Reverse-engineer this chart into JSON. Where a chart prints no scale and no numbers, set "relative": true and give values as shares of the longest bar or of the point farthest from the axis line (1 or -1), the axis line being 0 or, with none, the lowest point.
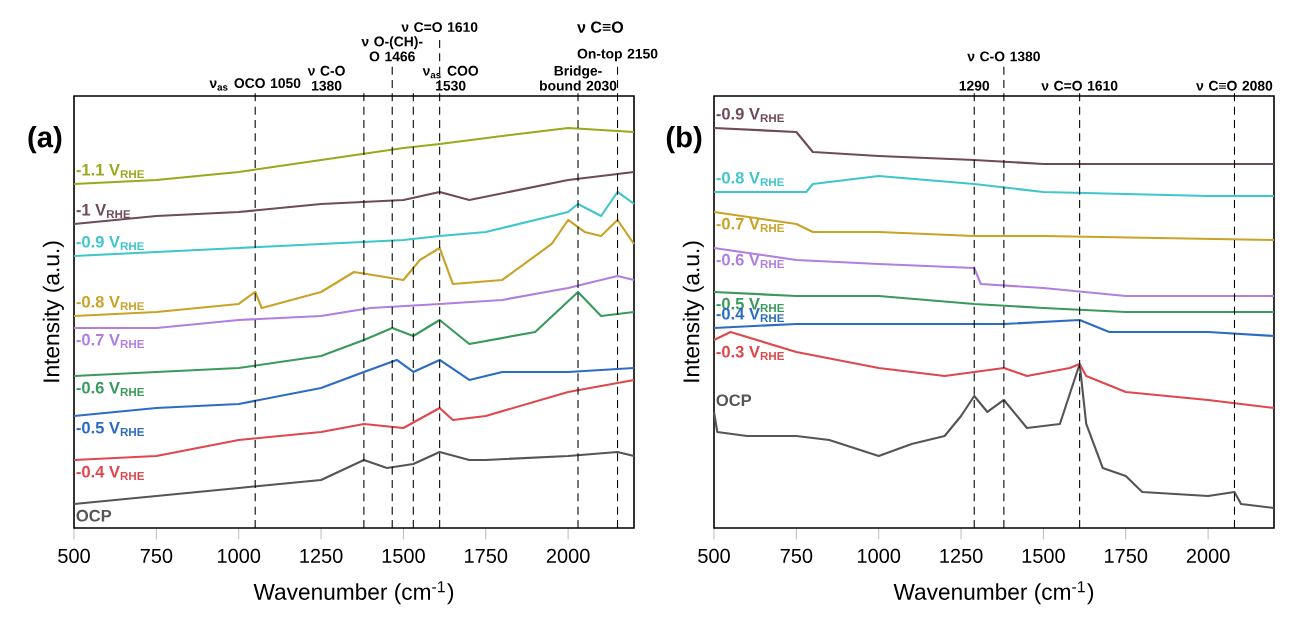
{
  "chart_data": [
    {
      "type": "line",
      "title": "(a)",
      "xlabel": "Wavenumber (cm$^{-1}$)",
      "ylabel": "Intensity (a.u.)",
      "relative": true,
      "xlim": [
        500,
        2200
      ],
      "xticks": [
        500,
        750,
        1000,
        1250,
        1500,
        1750,
        2000
      ],
      "line_style": "solid",
      "annotations": [
        "ν C≡O"
      ],
      "ref_lines": [
        {
          "axis": "x",
          "value": 1050,
          "label": "ν$_{as}$ OCO 1050",
          "line_style": "dashed"
        },
        {
          "axis": "x",
          "value": 1380,
          "label": "ν C-O 1380",
          "line_style": "dashed"
        },
        {
          "axis": "x",
          "value": 1466,
          "label": "ν O-(CH)-O 1466",
          "line_style": "dashed"
        },
        {
          "axis": "x",
          "value": 1530,
          "label": "ν$_{as}$ COO 1530",
          "line_style": "dashed"
        },
        {
          "axis": "x",
          "value": 1610,
          "label": "ν C=O 1610",
          "line_style": "dashed"
        },
        {
          "axis": "x",
          "value": 2030,
          "label": "Bridge-bound 2030",
          "line_style": "dashed"
        },
        {
          "axis": "x",
          "value": 2150,
          "label": "On-top 2150",
          "line_style": "dashed"
        }
      ],
      "series": [
        {
          "name": "OCP",
          "color": "#555555",
          "x": [
            500,
            750,
            1000,
            1250,
            1380,
            1450,
            1530,
            1610,
            1700,
            1750,
            2000,
            2150,
            2200
          ],
          "values": [
            0.06,
            0.08,
            0.1,
            0.12,
            0.17,
            0.15,
            0.16,
            0.19,
            0.17,
            0.17,
            0.18,
            0.19,
            0.18
          ]
        },
        {
          "name": "-0.4 V$_{RHE}$",
          "color": "#e0474c",
          "x": [
            500,
            750,
            1000,
            1250,
            1380,
            1500,
            1610,
            1650,
            1750,
            2000,
            2200
          ],
          "values": [
            0.17,
            0.18,
            0.22,
            0.24,
            0.26,
            0.25,
            0.3,
            0.27,
            0.28,
            0.34,
            0.37
          ]
        },
        {
          "name": "-0.5 V$_{RHE}$",
          "color": "#2c6cc4",
          "x": [
            500,
            750,
            1000,
            1250,
            1380,
            1480,
            1530,
            1610,
            1700,
            1800,
            2000,
            2200
          ],
          "values": [
            0.28,
            0.3,
            0.31,
            0.35,
            0.39,
            0.42,
            0.39,
            0.42,
            0.37,
            0.39,
            0.39,
            0.4
          ]
        },
        {
          "name": "-0.6 V$_{RHE}$",
          "color": "#3a9a5c",
          "x": [
            500,
            750,
            1000,
            1250,
            1380,
            1466,
            1530,
            1610,
            1700,
            1900,
            2030,
            2100,
            2200
          ],
          "values": [
            0.38,
            0.39,
            0.4,
            0.43,
            0.47,
            0.5,
            0.48,
            0.52,
            0.46,
            0.49,
            0.59,
            0.53,
            0.54
          ]
        },
        {
          "name": "-0.7 V$_{RHE}$",
          "color": "#b07fe0",
          "x": [
            500,
            750,
            1000,
            1250,
            1400,
            1610,
            1800,
            2000,
            2150,
            2200
          ],
          "values": [
            0.5,
            0.5,
            0.52,
            0.53,
            0.55,
            0.56,
            0.57,
            0.6,
            0.63,
            0.62
          ]
        },
        {
          "name": "-0.8 V$_{RHE}$",
          "color": "#c9a227",
          "x": [
            500,
            750,
            1000,
            1050,
            1070,
            1250,
            1350,
            1500,
            1550,
            1610,
            1650,
            1800,
            1950,
            2000,
            2050,
            2100,
            2150,
            2200
          ],
          "values": [
            0.53,
            0.54,
            0.56,
            0.59,
            0.55,
            0.59,
            0.64,
            0.62,
            0.67,
            0.7,
            0.61,
            0.62,
            0.71,
            0.77,
            0.74,
            0.73,
            0.77,
            0.71
          ]
        },
        {
          "name": "-0.9 V$_{RHE}$",
          "color": "#3fc6cc",
          "x": [
            500,
            750,
            1000,
            1250,
            1500,
            1610,
            1750,
            2000,
            2030,
            2100,
            2150,
            2200
          ],
          "values": [
            0.68,
            0.69,
            0.7,
            0.71,
            0.72,
            0.73,
            0.74,
            0.79,
            0.81,
            0.78,
            0.84,
            0.81
          ]
        },
        {
          "name": "-1 V$_{RHE}$",
          "color": "#6e4a5a",
          "x": [
            500,
            750,
            1000,
            1250,
            1500,
            1610,
            1700,
            2000,
            2200
          ],
          "values": [
            0.76,
            0.78,
            0.79,
            0.81,
            0.82,
            0.84,
            0.82,
            0.87,
            0.89
          ]
        },
        {
          "name": "-1.1 V$_{RHE}$",
          "color": "#9aa81c",
          "x": [
            500,
            750,
            1000,
            1250,
            1500,
            1610,
            1800,
            2000,
            2200
          ],
          "values": [
            0.86,
            0.87,
            0.89,
            0.92,
            0.95,
            0.96,
            0.98,
            1.0,
            0.99
          ]
        }
      ]
    },
    {
      "type": "line",
      "title": "(b)",
      "xlabel": "Wavenumber (cm$^{-1}$)",
      "ylabel": "Intensity (a.u.)",
      "relative": true,
      "xlim": [
        500,
        2200
      ],
      "xticks": [
        500,
        750,
        1000,
        1250,
        1500,
        1750,
        2000
      ],
      "line_style": "solid",
      "ref_lines": [
        {
          "axis": "x",
          "value": 1290,
          "label": "1290",
          "line_style": "dashed"
        },
        {
          "axis": "x",
          "value": 1380,
          "label": "ν C-O 1380",
          "line_style": "dashed"
        },
        {
          "axis": "x",
          "value": 1610,
          "label": "ν C=O 1610",
          "line_style": "dashed"
        },
        {
          "axis": "x",
          "value": 2080,
          "label": "ν C≡O 2080",
          "line_style": "dashed"
        }
      ],
      "series": [
        {
          "name": "OCP",
          "color": "#555555",
          "x": [
            500,
            510,
            600,
            750,
            850,
            1000,
            1100,
            1200,
            1250,
            1290,
            1330,
            1380,
            1450,
            1550,
            1610,
            1630,
            1680,
            1750,
            1800,
            2000,
            2080,
            2100,
            2200
          ],
          "values": [
            0.29,
            0.24,
            0.23,
            0.23,
            0.22,
            0.18,
            0.21,
            0.23,
            0.28,
            0.33,
            0.29,
            0.32,
            0.25,
            0.26,
            0.41,
            0.26,
            0.15,
            0.13,
            0.09,
            0.08,
            0.09,
            0.06,
            0.05
          ]
        },
        {
          "name": "-0.3 V$_{RHE}$",
          "color": "#e0474c",
          "x": [
            500,
            550,
            750,
            1000,
            1200,
            1290,
            1380,
            1450,
            1580,
            1610,
            1630,
            1750,
            2000,
            2200
          ],
          "values": [
            0.47,
            0.49,
            0.44,
            0.4,
            0.38,
            0.39,
            0.4,
            0.38,
            0.4,
            0.41,
            0.38,
            0.34,
            0.32,
            0.3
          ]
        },
        {
          "name": "-0.4 V$_{RHE}$",
          "color": "#2c6cc4",
          "x": [
            500,
            750,
            1000,
            1290,
            1380,
            1610,
            1700,
            2000,
            2200
          ],
          "values": [
            0.5,
            0.51,
            0.51,
            0.51,
            0.51,
            0.52,
            0.49,
            0.49,
            0.48
          ]
        },
        {
          "name": "-0.5 V$_{RHE}$",
          "color": "#3a9a5c",
          "x": [
            500,
            750,
            1000,
            1290,
            1500,
            1750,
            2200
          ],
          "values": [
            0.59,
            0.58,
            0.58,
            0.56,
            0.55,
            0.54,
            0.54
          ]
        },
        {
          "name": "-0.6 V$_{RHE}$",
          "color": "#b07fe0",
          "x": [
            500,
            750,
            1000,
            1290,
            1310,
            1500,
            1750,
            2200
          ],
          "values": [
            0.7,
            0.67,
            0.66,
            0.65,
            0.61,
            0.6,
            0.58,
            0.58
          ]
        },
        {
          "name": "-0.7 V$_{RHE}$",
          "color": "#c9a227",
          "x": [
            500,
            750,
            800,
            1000,
            1290,
            1500,
            2200
          ],
          "values": [
            0.79,
            0.76,
            0.74,
            0.74,
            0.73,
            0.73,
            0.72
          ]
        },
        {
          "name": "-0.8 V$_{RHE}$",
          "color": "#3fc6cc",
          "x": [
            500,
            780,
            800,
            1000,
            1290,
            1500,
            2000,
            2200
          ],
          "values": [
            0.84,
            0.84,
            0.86,
            0.88,
            0.86,
            0.84,
            0.83,
            0.83
          ]
        },
        {
          "name": "-0.9 V$_{RHE}$",
          "color": "#6e4a5a",
          "x": [
            500,
            750,
            800,
            1000,
            1290,
            1500,
            2200
          ],
          "values": [
            1.0,
            0.99,
            0.94,
            0.93,
            0.92,
            0.91,
            0.91
          ]
        }
      ]
    }
  ]
}
